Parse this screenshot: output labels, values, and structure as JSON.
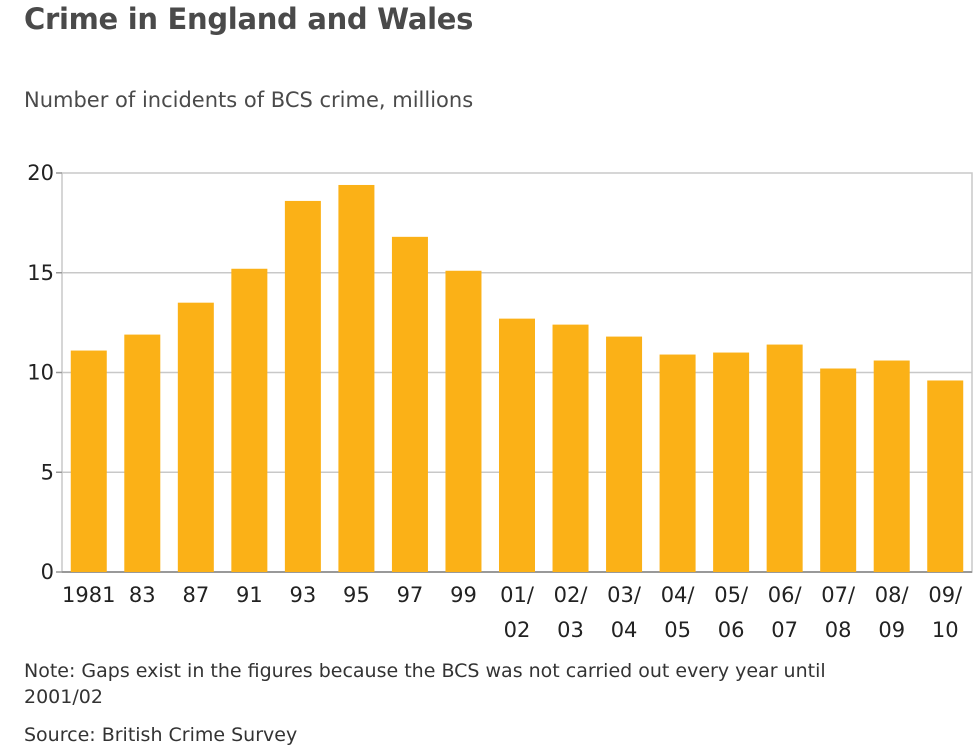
{
  "title": "Crime in England and Wales",
  "subtitle": "Number of incidents of BCS crime, millions",
  "note": "Note: Gaps exist in the figures because the BCS was not carried out every year until 2001/02",
  "source": "Source: British Crime Survey",
  "colors": {
    "bar": "#fbb117",
    "grid": "#c8c8c8",
    "axis": "#999999"
  },
  "chart_data": {
    "type": "bar",
    "categories": [
      "1981",
      "83",
      "87",
      "91",
      "93",
      "95",
      "97",
      "99",
      "01/02",
      "02/03",
      "03/04",
      "04/05",
      "05/06",
      "06/07",
      "07/08",
      "08/09",
      "09/10"
    ],
    "tick_labels": [
      [
        "1981"
      ],
      [
        "83"
      ],
      [
        "87"
      ],
      [
        "91"
      ],
      [
        "93"
      ],
      [
        "95"
      ],
      [
        "97"
      ],
      [
        "99"
      ],
      [
        "01/",
        "02"
      ],
      [
        "02/",
        "03"
      ],
      [
        "03/",
        "04"
      ],
      [
        "04/",
        "05"
      ],
      [
        "05/",
        "06"
      ],
      [
        "06/",
        "07"
      ],
      [
        "07/",
        "08"
      ],
      [
        "08/",
        "09"
      ],
      [
        "09/",
        "10"
      ]
    ],
    "values": [
      11.1,
      11.9,
      13.5,
      15.2,
      18.6,
      19.4,
      16.8,
      15.1,
      12.7,
      12.4,
      11.8,
      10.9,
      11.0,
      11.4,
      10.2,
      10.6,
      9.6
    ],
    "yticks": [
      0,
      5,
      10,
      15,
      20
    ],
    "ylim": [
      0,
      20
    ],
    "grid": true,
    "legend": "none"
  }
}
